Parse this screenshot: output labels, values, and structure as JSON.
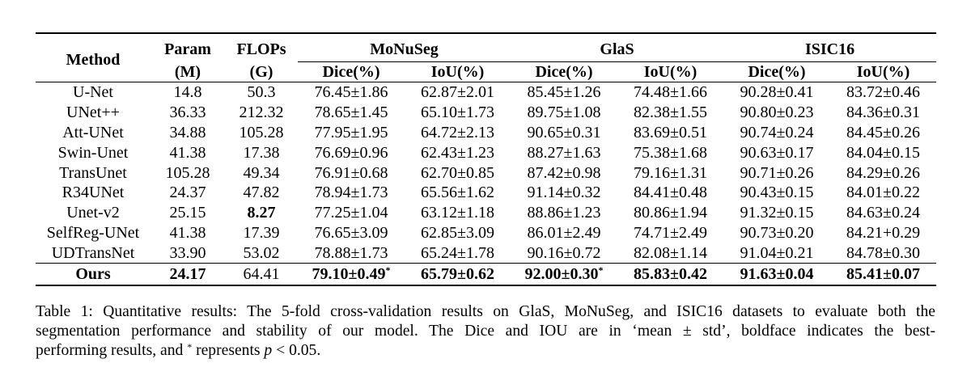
{
  "table": {
    "header": {
      "method": "Method",
      "param_top": "Param",
      "param_bottom": "(M)",
      "flops_top": "FLOPs",
      "flops_bottom": "(G)",
      "groups": [
        "MoNuSeg",
        "GlaS",
        "ISIC16"
      ],
      "sub": [
        "Dice(%)",
        "IoU(%)"
      ]
    },
    "rows": [
      {
        "method": "U-Net",
        "param": "14.8",
        "flops": "50.3",
        "mn_dice": "76.45±1.86",
        "mn_iou": "62.87±2.01",
        "gl_dice": "85.45±1.26",
        "gl_iou": "74.48±1.66",
        "is_dice": "90.28±0.41",
        "is_iou": "83.72±0.46"
      },
      {
        "method": "UNet++",
        "param": "36.33",
        "flops": "212.32",
        "mn_dice": "78.65±1.45",
        "mn_iou": "65.10±1.73",
        "gl_dice": "89.75±1.08",
        "gl_iou": "82.38±1.55",
        "is_dice": "90.80±0.23",
        "is_iou": "84.36±0.31"
      },
      {
        "method": "Att-UNet",
        "param": "34.88",
        "flops": "105.28",
        "mn_dice": "77.95±1.95",
        "mn_iou": "64.72±2.13",
        "gl_dice": "90.65±0.31",
        "gl_iou": "83.69±0.51",
        "is_dice": "90.74±0.24",
        "is_iou": "84.45±0.26"
      },
      {
        "method": "Swin-Unet",
        "param": "41.38",
        "flops": "17.38",
        "mn_dice": "76.69±0.96",
        "mn_iou": "62.43±1.23",
        "gl_dice": "88.27±1.63",
        "gl_iou": "75.38±1.68",
        "is_dice": "90.63±0.17",
        "is_iou": "84.04±0.15"
      },
      {
        "method": "TransUnet",
        "param": "105.28",
        "flops": "49.34",
        "mn_dice": "76.91±0.68",
        "mn_iou": "62.70±0.85",
        "gl_dice": "87.42±0.98",
        "gl_iou": "79.16±1.31",
        "is_dice": "90.71±0.26",
        "is_iou": "84.29±0.26"
      },
      {
        "method": "R34UNet",
        "param": "24.37",
        "flops": "47.82",
        "mn_dice": "78.94±1.73",
        "mn_iou": "65.56±1.62",
        "gl_dice": "91.14±0.32",
        "gl_iou": "84.41±0.48",
        "is_dice": "90.43±0.15",
        "is_iou": "84.01±0.22"
      },
      {
        "method": "Unet-v2",
        "param": "25.15",
        "flops": "8.27",
        "mn_dice": "77.25±1.04",
        "mn_iou": "63.12±1.18",
        "gl_dice": "88.86±1.23",
        "gl_iou": "80.86±1.94",
        "is_dice": "91.32±0.15",
        "is_iou": "84.63±0.24"
      },
      {
        "method": "SelfReg-UNet",
        "param": "41.38",
        "flops": "17.39",
        "mn_dice": "76.65±3.09",
        "mn_iou": "62.85±3.09",
        "gl_dice": "86.01±2.49",
        "gl_iou": "74.71±2.49",
        "is_dice": "90.73±0.20",
        "is_iou": "84.21+0.29"
      },
      {
        "method": "UDTransNet",
        "param": "33.90",
        "flops": "53.02",
        "mn_dice": "78.88±1.73",
        "mn_iou": "65.24±1.78",
        "gl_dice": "90.16±0.72",
        "gl_iou": "82.08±1.14",
        "is_dice": "91.04±0.21",
        "is_iou": "84.78±0.30"
      }
    ],
    "ours": {
      "method": "Ours",
      "param": "24.17",
      "flops": "64.41",
      "mn_dice": "79.10±0.49",
      "mn_dice_mark": "*",
      "mn_iou": "65.79±0.62",
      "gl_dice": "92.00±0.30",
      "gl_dice_mark": "*",
      "gl_iou": "85.83±0.42",
      "is_dice": "91.63±0.04",
      "is_iou": "85.41±0.07"
    }
  },
  "caption": {
    "line1": "Table 1: Quantitative results: The 5-fold cross-validation results on GlaS, MoNuSeg, and ISIC16 datasets to evaluate both the",
    "line2": "segmentation performance and stability of our model. The Dice and IOU are in ‘mean ± std’, boldface indicates the best-",
    "line3_a": "performing results, and ",
    "line3_star": "*",
    "line3_b": " represents ",
    "line3_p": "p",
    "line3_c": " < 0.05."
  }
}
